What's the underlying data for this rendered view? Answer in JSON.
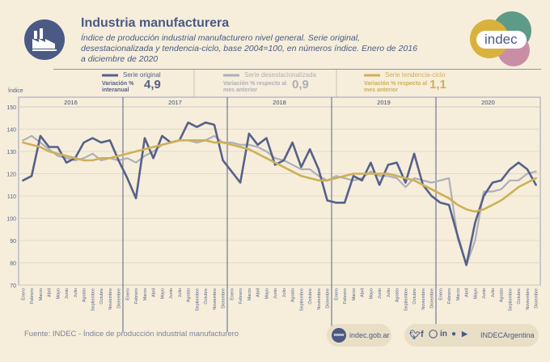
{
  "header": {
    "title": "Industria manufacturera",
    "subtitle": "Índice de producción industrial manufacturero nivel general. Serie original, desestacionalizada y tendencia-ciclo, base 2004=100, en números índice. Enero de 2016 a diciembre de 2020",
    "brand": "indec"
  },
  "legend": {
    "original": "Serie original",
    "desest": "Serie desestacionalizada",
    "tendencia": "Serie tendencia-ciclo",
    "var_interanual_label": "Variación % interanual",
    "var_interanual_value": "4,9",
    "var_desest_label": "Variación % respecto al mes anterior",
    "var_desest_value": "0,9",
    "var_tend_label": "Variación % respecto al mes anterior",
    "var_tend_value": "1,1"
  },
  "footer": {
    "source": "Fuente: INDEC - Índice de producción industrial manufacturero",
    "web": "indec.gob.ar",
    "www": "www",
    "handle": "INDECArgentina"
  },
  "colors": {
    "original": "#56618a",
    "desest": "#aeb0b9",
    "tendencia": "#cdb058",
    "brand_teal": "#5e9a88",
    "brand_yellow": "#d8b23c",
    "brand_pink": "#c98ea6"
  },
  "chart_data": {
    "type": "line",
    "ylabel": "Índice",
    "ylim": [
      70,
      150
    ],
    "yticks": [
      70,
      80,
      90,
      100,
      110,
      120,
      130,
      140,
      150
    ],
    "years": [
      "2016",
      "2017",
      "2018",
      "2019",
      "2020"
    ],
    "months": [
      "Enero",
      "Febrero",
      "Marzo",
      "Abril",
      "Mayo",
      "Junio",
      "Julio",
      "Agosto",
      "Septiembre",
      "Octubre",
      "Noviembre",
      "Diciembre"
    ],
    "series": [
      {
        "name": "Serie original",
        "values": [
          117,
          119,
          137,
          132,
          132,
          125,
          127,
          134,
          136,
          134,
          135,
          126,
          118,
          109,
          136,
          127,
          137,
          134,
          135,
          143,
          141,
          143,
          142,
          126,
          121,
          116,
          138,
          133,
          136,
          124,
          126,
          134,
          123,
          131,
          122,
          108,
          107,
          107,
          119,
          117,
          125,
          115,
          124,
          125,
          116,
          129,
          115,
          110,
          107,
          106,
          92,
          79,
          98,
          110,
          116,
          117,
          122,
          125,
          122,
          115
        ]
      },
      {
        "name": "Serie desestacionalizada",
        "values": [
          135,
          137,
          134,
          131,
          128,
          127,
          126,
          127,
          129,
          126,
          127,
          126,
          127,
          125,
          128,
          130,
          133,
          134,
          135,
          135,
          134,
          135,
          137,
          134,
          134,
          133,
          133,
          132,
          130,
          127,
          126,
          124,
          122,
          122,
          119,
          117,
          119,
          118,
          117,
          118,
          121,
          119,
          119,
          118,
          114,
          118,
          117,
          116,
          117,
          118,
          91,
          79,
          90,
          112,
          112,
          113,
          117,
          117,
          120,
          121
        ]
      },
      {
        "name": "Serie tendencia-ciclo",
        "values": [
          134,
          133,
          132,
          130,
          129,
          128,
          127,
          126,
          126,
          127,
          127,
          128,
          129,
          130,
          131,
          132,
          133,
          134,
          135,
          135,
          135,
          135,
          134,
          134,
          133,
          132,
          131,
          129,
          127,
          125,
          123,
          121,
          119,
          118,
          117,
          117,
          118,
          119,
          120,
          120,
          120,
          120,
          120,
          119,
          118,
          117,
          115,
          113,
          111,
          109,
          106,
          104,
          103,
          104,
          106,
          108,
          111,
          114,
          116,
          118
        ]
      }
    ]
  }
}
